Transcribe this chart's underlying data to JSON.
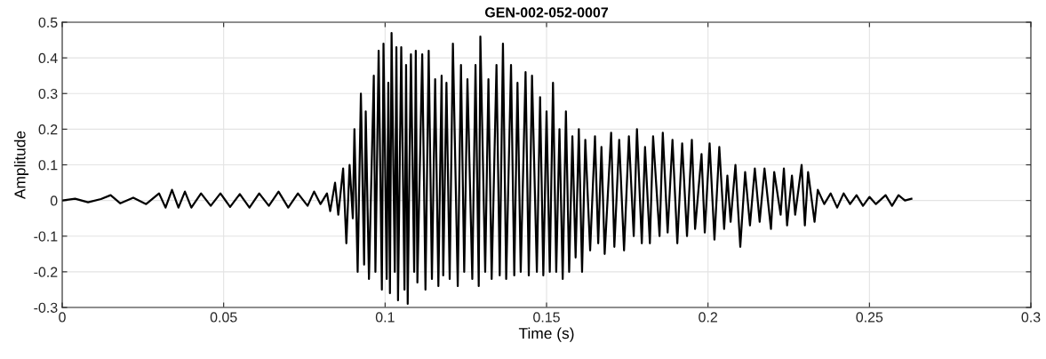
{
  "chart_data": {
    "type": "line",
    "title": "GEN-002-052-0007",
    "xlabel": "Time (s)",
    "ylabel": "Amplitude",
    "x": [
      0,
      0.004,
      0.008,
      0.012,
      0.015,
      0.018,
      0.022,
      0.026,
      0.03,
      0.032,
      0.034,
      0.036,
      0.038,
      0.04,
      0.043,
      0.046,
      0.049,
      0.052,
      0.055,
      0.058,
      0.061,
      0.064,
      0.067,
      0.07,
      0.073,
      0.076,
      0.078,
      0.08,
      0.082,
      0.083,
      0.0845,
      0.0855,
      0.087,
      0.088,
      0.089,
      0.09,
      0.0905,
      0.0915,
      0.0925,
      0.0935,
      0.094,
      0.095,
      0.0965,
      0.097,
      0.098,
      0.099,
      0.0995,
      0.1005,
      0.101,
      0.1015,
      0.102,
      0.103,
      0.1035,
      0.104,
      0.105,
      0.106,
      0.1065,
      0.107,
      0.108,
      0.109,
      0.1095,
      0.11,
      0.1115,
      0.1125,
      0.1135,
      0.1145,
      0.1155,
      0.1165,
      0.1175,
      0.118,
      0.119,
      0.12,
      0.121,
      0.1225,
      0.1235,
      0.1245,
      0.1255,
      0.127,
      0.128,
      0.129,
      0.1295,
      0.131,
      0.132,
      0.133,
      0.1345,
      0.1355,
      0.1365,
      0.1375,
      0.139,
      0.14,
      0.141,
      0.142,
      0.1435,
      0.1445,
      0.1455,
      0.147,
      0.148,
      0.149,
      0.15,
      0.151,
      0.152,
      0.153,
      0.154,
      0.155,
      0.156,
      0.157,
      0.158,
      0.159,
      0.16,
      0.161,
      0.162,
      0.1635,
      0.165,
      0.166,
      0.167,
      0.168,
      0.17,
      0.171,
      0.1725,
      0.174,
      0.1755,
      0.177,
      0.178,
      0.1795,
      0.1805,
      0.182,
      0.183,
      0.185,
      0.186,
      0.1875,
      0.189,
      0.1905,
      0.192,
      0.1935,
      0.195,
      0.196,
      0.198,
      0.199,
      0.2005,
      0.202,
      0.2035,
      0.205,
      0.206,
      0.207,
      0.2085,
      0.21,
      0.2115,
      0.213,
      0.2145,
      0.216,
      0.2175,
      0.2195,
      0.2205,
      0.2225,
      0.2235,
      0.2245,
      0.226,
      0.227,
      0.229,
      0.23,
      0.231,
      0.233,
      0.234,
      0.236,
      0.238,
      0.24,
      0.242,
      0.244,
      0.246,
      0.248,
      0.25,
      0.252,
      0.255,
      0.257,
      0.259,
      0.261,
      0.263
    ],
    "series": [
      {
        "color": "#000000",
        "values": [
          0,
          0.005,
          -0.005,
          0.004,
          0.015,
          -0.008,
          0.008,
          -0.01,
          0.02,
          -0.02,
          0.03,
          -0.02,
          0.025,
          -0.02,
          0.02,
          -0.015,
          0.02,
          -0.018,
          0.018,
          -0.02,
          0.02,
          -0.015,
          0.025,
          -0.02,
          0.02,
          -0.015,
          0.025,
          -0.01,
          0.02,
          -0.03,
          0.05,
          -0.04,
          0.09,
          -0.12,
          0.1,
          -0.05,
          0.2,
          -0.2,
          0.3,
          -0.18,
          0.25,
          -0.22,
          0.35,
          -0.2,
          0.42,
          -0.25,
          0.44,
          -0.22,
          0.33,
          -0.26,
          0.47,
          -0.2,
          0.43,
          -0.28,
          0.43,
          -0.25,
          0.38,
          -0.29,
          0.41,
          -0.2,
          0.42,
          -0.23,
          0.41,
          -0.25,
          0.42,
          -0.22,
          0.34,
          -0.24,
          0.35,
          -0.21,
          0.33,
          -0.22,
          0.44,
          -0.24,
          0.38,
          -0.2,
          0.34,
          -0.22,
          0.38,
          -0.24,
          0.46,
          -0.2,
          0.34,
          -0.22,
          0.38,
          -0.21,
          0.44,
          -0.22,
          0.38,
          -0.21,
          0.33,
          -0.2,
          0.36,
          -0.21,
          0.35,
          -0.2,
          0.29,
          -0.21,
          0.25,
          -0.2,
          0.33,
          -0.2,
          0.2,
          -0.22,
          0.25,
          -0.2,
          0.18,
          -0.16,
          0.2,
          -0.2,
          0.17,
          -0.14,
          0.18,
          -0.12,
          0.15,
          -0.15,
          0.19,
          -0.13,
          0.17,
          -0.14,
          0.18,
          -0.1,
          0.2,
          -0.12,
          0.15,
          -0.12,
          0.18,
          -0.1,
          0.19,
          -0.09,
          0.17,
          -0.12,
          0.16,
          -0.1,
          0.17,
          -0.08,
          0.13,
          -0.09,
          0.16,
          -0.11,
          0.15,
          -0.08,
          0.07,
          -0.06,
          0.1,
          -0.13,
          0.08,
          -0.07,
          0.09,
          -0.06,
          0.09,
          -0.08,
          0.08,
          -0.04,
          0.09,
          -0.07,
          0.07,
          -0.04,
          0.1,
          -0.07,
          0.08,
          -0.06,
          0.03,
          -0.01,
          0.02,
          -0.02,
          0.02,
          -0.01,
          0.015,
          -0.015,
          0.01,
          -0.01,
          0.015,
          -0.015,
          0.015,
          0,
          0.005
        ]
      }
    ],
    "xlim": [
      0,
      0.3
    ],
    "xticks": [
      0,
      0.05,
      0.1,
      0.15,
      0.2,
      0.25,
      0.3
    ],
    "ylim": [
      -0.3,
      0.5
    ],
    "yticks": [
      -0.3,
      -0.2,
      -0.1,
      0,
      0.1,
      0.2,
      0.3,
      0.4,
      0.5
    ],
    "grid": true,
    "marker": "none",
    "line_style": "solid"
  }
}
